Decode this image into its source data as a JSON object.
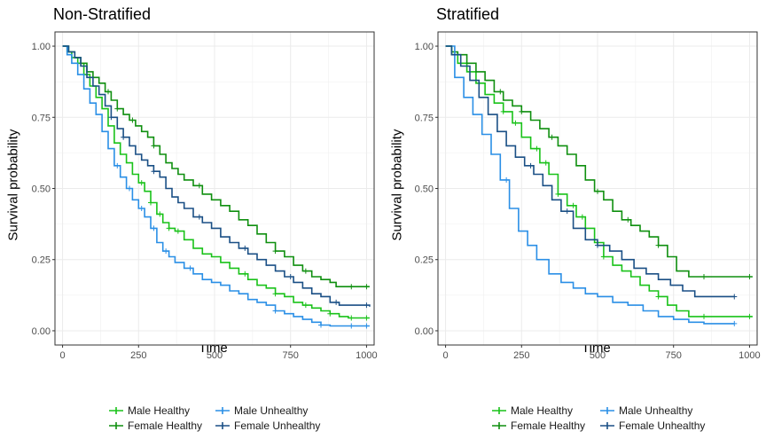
{
  "chart_data": [
    {
      "type": "line",
      "title": "Non-Stratified",
      "xlabel": "Time",
      "ylabel": "Survival probability",
      "xlim": [
        -25,
        1025
      ],
      "ylim": [
        -0.05,
        1.05
      ],
      "x_ticks": [
        0,
        250,
        500,
        750,
        1000
      ],
      "y_ticks": [
        0.0,
        0.25,
        0.5,
        0.75,
        1.0
      ],
      "x_tick_labels": [
        "0",
        "250",
        "500",
        "750",
        "1000"
      ],
      "y_tick_labels": [
        "0.00",
        "0.25",
        "0.50",
        "0.75",
        "1.00"
      ],
      "grid": true,
      "legend_position": "bottom",
      "series": [
        {
          "name": "Male Healthy",
          "color": "#19c219",
          "x": [
            0,
            15,
            30,
            50,
            70,
            90,
            110,
            130,
            150,
            170,
            190,
            210,
            230,
            250,
            270,
            290,
            310,
            330,
            350,
            370,
            400,
            430,
            460,
            490,
            520,
            550,
            580,
            610,
            640,
            670,
            700,
            730,
            760,
            790,
            820,
            850,
            880,
            910,
            940,
            1010
          ],
          "y": [
            1.0,
            0.98,
            0.96,
            0.94,
            0.9,
            0.86,
            0.82,
            0.78,
            0.72,
            0.66,
            0.62,
            0.59,
            0.55,
            0.52,
            0.49,
            0.45,
            0.41,
            0.38,
            0.36,
            0.35,
            0.32,
            0.29,
            0.27,
            0.26,
            0.24,
            0.22,
            0.2,
            0.18,
            0.16,
            0.15,
            0.13,
            0.12,
            0.1,
            0.09,
            0.08,
            0.07,
            0.06,
            0.05,
            0.045,
            0.045
          ],
          "censor_x": [
            260,
            290,
            320,
            350,
            380,
            600,
            700,
            800,
            880,
            950,
            1000
          ]
        },
        {
          "name": "Female Healthy",
          "color": "#0f8f0f",
          "x": [
            0,
            20,
            40,
            60,
            80,
            100,
            120,
            140,
            160,
            180,
            200,
            220,
            240,
            260,
            280,
            300,
            320,
            340,
            360,
            380,
            400,
            430,
            460,
            490,
            520,
            550,
            580,
            610,
            640,
            670,
            700,
            730,
            760,
            790,
            820,
            850,
            880,
            900,
            950,
            1010
          ],
          "y": [
            1.0,
            0.98,
            0.96,
            0.94,
            0.91,
            0.89,
            0.87,
            0.84,
            0.81,
            0.78,
            0.76,
            0.74,
            0.72,
            0.7,
            0.68,
            0.65,
            0.62,
            0.59,
            0.57,
            0.55,
            0.53,
            0.51,
            0.48,
            0.46,
            0.44,
            0.42,
            0.39,
            0.37,
            0.34,
            0.31,
            0.28,
            0.26,
            0.23,
            0.21,
            0.19,
            0.18,
            0.17,
            0.155,
            0.155,
            0.155
          ],
          "censor_x": [
            150,
            180,
            230,
            300,
            450,
            700,
            800,
            950,
            1000
          ]
        },
        {
          "name": "Male Unhealthy",
          "color": "#2a8fe6",
          "x": [
            0,
            15,
            30,
            50,
            70,
            90,
            110,
            130,
            150,
            170,
            190,
            210,
            230,
            250,
            270,
            290,
            310,
            330,
            350,
            370,
            400,
            430,
            460,
            490,
            520,
            550,
            580,
            610,
            640,
            670,
            700,
            730,
            760,
            790,
            820,
            850,
            880,
            910,
            1010
          ],
          "y": [
            1.0,
            0.97,
            0.94,
            0.9,
            0.85,
            0.8,
            0.76,
            0.7,
            0.64,
            0.58,
            0.54,
            0.5,
            0.46,
            0.43,
            0.4,
            0.36,
            0.31,
            0.28,
            0.26,
            0.24,
            0.22,
            0.2,
            0.18,
            0.17,
            0.16,
            0.14,
            0.13,
            0.11,
            0.1,
            0.09,
            0.07,
            0.06,
            0.05,
            0.04,
            0.03,
            0.02,
            0.017,
            0.017,
            0.017
          ],
          "censor_x": [
            180,
            220,
            260,
            300,
            340,
            420,
            700,
            850,
            950,
            1000
          ]
        },
        {
          "name": "Female Unhealthy",
          "color": "#1a4f85",
          "x": [
            0,
            20,
            40,
            60,
            80,
            100,
            120,
            140,
            160,
            180,
            200,
            220,
            240,
            260,
            280,
            300,
            320,
            340,
            360,
            380,
            400,
            430,
            460,
            490,
            520,
            550,
            580,
            610,
            640,
            670,
            700,
            730,
            760,
            790,
            820,
            850,
            880,
            910,
            1010
          ],
          "y": [
            1.0,
            0.98,
            0.96,
            0.93,
            0.89,
            0.86,
            0.83,
            0.79,
            0.75,
            0.71,
            0.68,
            0.65,
            0.62,
            0.6,
            0.58,
            0.56,
            0.54,
            0.5,
            0.47,
            0.45,
            0.43,
            0.4,
            0.38,
            0.36,
            0.33,
            0.31,
            0.29,
            0.27,
            0.25,
            0.23,
            0.21,
            0.19,
            0.17,
            0.15,
            0.13,
            0.12,
            0.1,
            0.09,
            0.085
          ],
          "censor_x": [
            160,
            200,
            300,
            450,
            600,
            750,
            900,
            1000
          ]
        }
      ]
    },
    {
      "type": "line",
      "title": "Stratified",
      "xlabel": "Time",
      "ylabel": "Survival probability",
      "xlim": [
        -25,
        1025
      ],
      "ylim": [
        -0.05,
        1.05
      ],
      "x_ticks": [
        0,
        250,
        500,
        750,
        1000
      ],
      "y_ticks": [
        0.0,
        0.25,
        0.5,
        0.75,
        1.0
      ],
      "x_tick_labels": [
        "0",
        "250",
        "500",
        "750",
        "1000"
      ],
      "y_tick_labels": [
        "0.00",
        "0.25",
        "0.50",
        "0.75",
        "1.00"
      ],
      "grid": true,
      "legend_position": "bottom",
      "series": [
        {
          "name": "Male Healthy",
          "color": "#19c219",
          "x": [
            0,
            20,
            40,
            70,
            100,
            130,
            160,
            190,
            220,
            250,
            280,
            310,
            340,
            370,
            400,
            430,
            460,
            490,
            520,
            550,
            580,
            610,
            640,
            670,
            700,
            730,
            760,
            800,
            850,
            1010
          ],
          "y": [
            1.0,
            0.97,
            0.94,
            0.91,
            0.87,
            0.83,
            0.8,
            0.77,
            0.73,
            0.68,
            0.64,
            0.59,
            0.55,
            0.48,
            0.44,
            0.4,
            0.36,
            0.31,
            0.26,
            0.23,
            0.21,
            0.19,
            0.16,
            0.14,
            0.12,
            0.09,
            0.07,
            0.05,
            0.05,
            0.05
          ],
          "censor_x": [
            190,
            230,
            300,
            330,
            370,
            420,
            450,
            520,
            700,
            850,
            1000
          ]
        },
        {
          "name": "Female Healthy",
          "color": "#0f8f0f",
          "x": [
            0,
            20,
            40,
            70,
            100,
            130,
            160,
            190,
            220,
            250,
            280,
            310,
            340,
            370,
            400,
            430,
            460,
            490,
            520,
            550,
            580,
            610,
            640,
            670,
            700,
            730,
            760,
            800,
            850,
            1010
          ],
          "y": [
            1.0,
            0.98,
            0.97,
            0.94,
            0.91,
            0.88,
            0.84,
            0.81,
            0.79,
            0.77,
            0.74,
            0.71,
            0.68,
            0.65,
            0.62,
            0.58,
            0.53,
            0.49,
            0.46,
            0.42,
            0.39,
            0.37,
            0.35,
            0.33,
            0.3,
            0.26,
            0.21,
            0.19,
            0.19,
            0.19
          ],
          "censor_x": [
            180,
            250,
            350,
            500,
            600,
            700,
            850,
            1000
          ]
        },
        {
          "name": "Male Unhealthy",
          "color": "#2a8fe6",
          "x": [
            0,
            30,
            60,
            90,
            120,
            150,
            180,
            210,
            240,
            270,
            300,
            340,
            380,
            420,
            460,
            500,
            550,
            600,
            650,
            700,
            750,
            800,
            850,
            950
          ],
          "y": [
            1.0,
            0.89,
            0.82,
            0.76,
            0.69,
            0.62,
            0.53,
            0.43,
            0.35,
            0.3,
            0.25,
            0.2,
            0.17,
            0.15,
            0.13,
            0.12,
            0.1,
            0.09,
            0.07,
            0.05,
            0.04,
            0.03,
            0.025,
            0.025
          ],
          "censor_x": [
            200,
            950
          ]
        },
        {
          "name": "Female Unhealthy",
          "color": "#1a4f85",
          "x": [
            0,
            20,
            50,
            80,
            110,
            140,
            170,
            200,
            230,
            260,
            290,
            320,
            350,
            380,
            420,
            460,
            500,
            540,
            580,
            620,
            660,
            700,
            740,
            780,
            820,
            860,
            950
          ],
          "y": [
            1.0,
            0.97,
            0.93,
            0.88,
            0.82,
            0.76,
            0.7,
            0.65,
            0.61,
            0.58,
            0.55,
            0.51,
            0.46,
            0.42,
            0.36,
            0.32,
            0.3,
            0.28,
            0.25,
            0.22,
            0.2,
            0.18,
            0.16,
            0.14,
            0.12,
            0.12,
            0.12
          ],
          "censor_x": [
            280,
            400,
            500,
            950
          ]
        }
      ]
    }
  ]
}
